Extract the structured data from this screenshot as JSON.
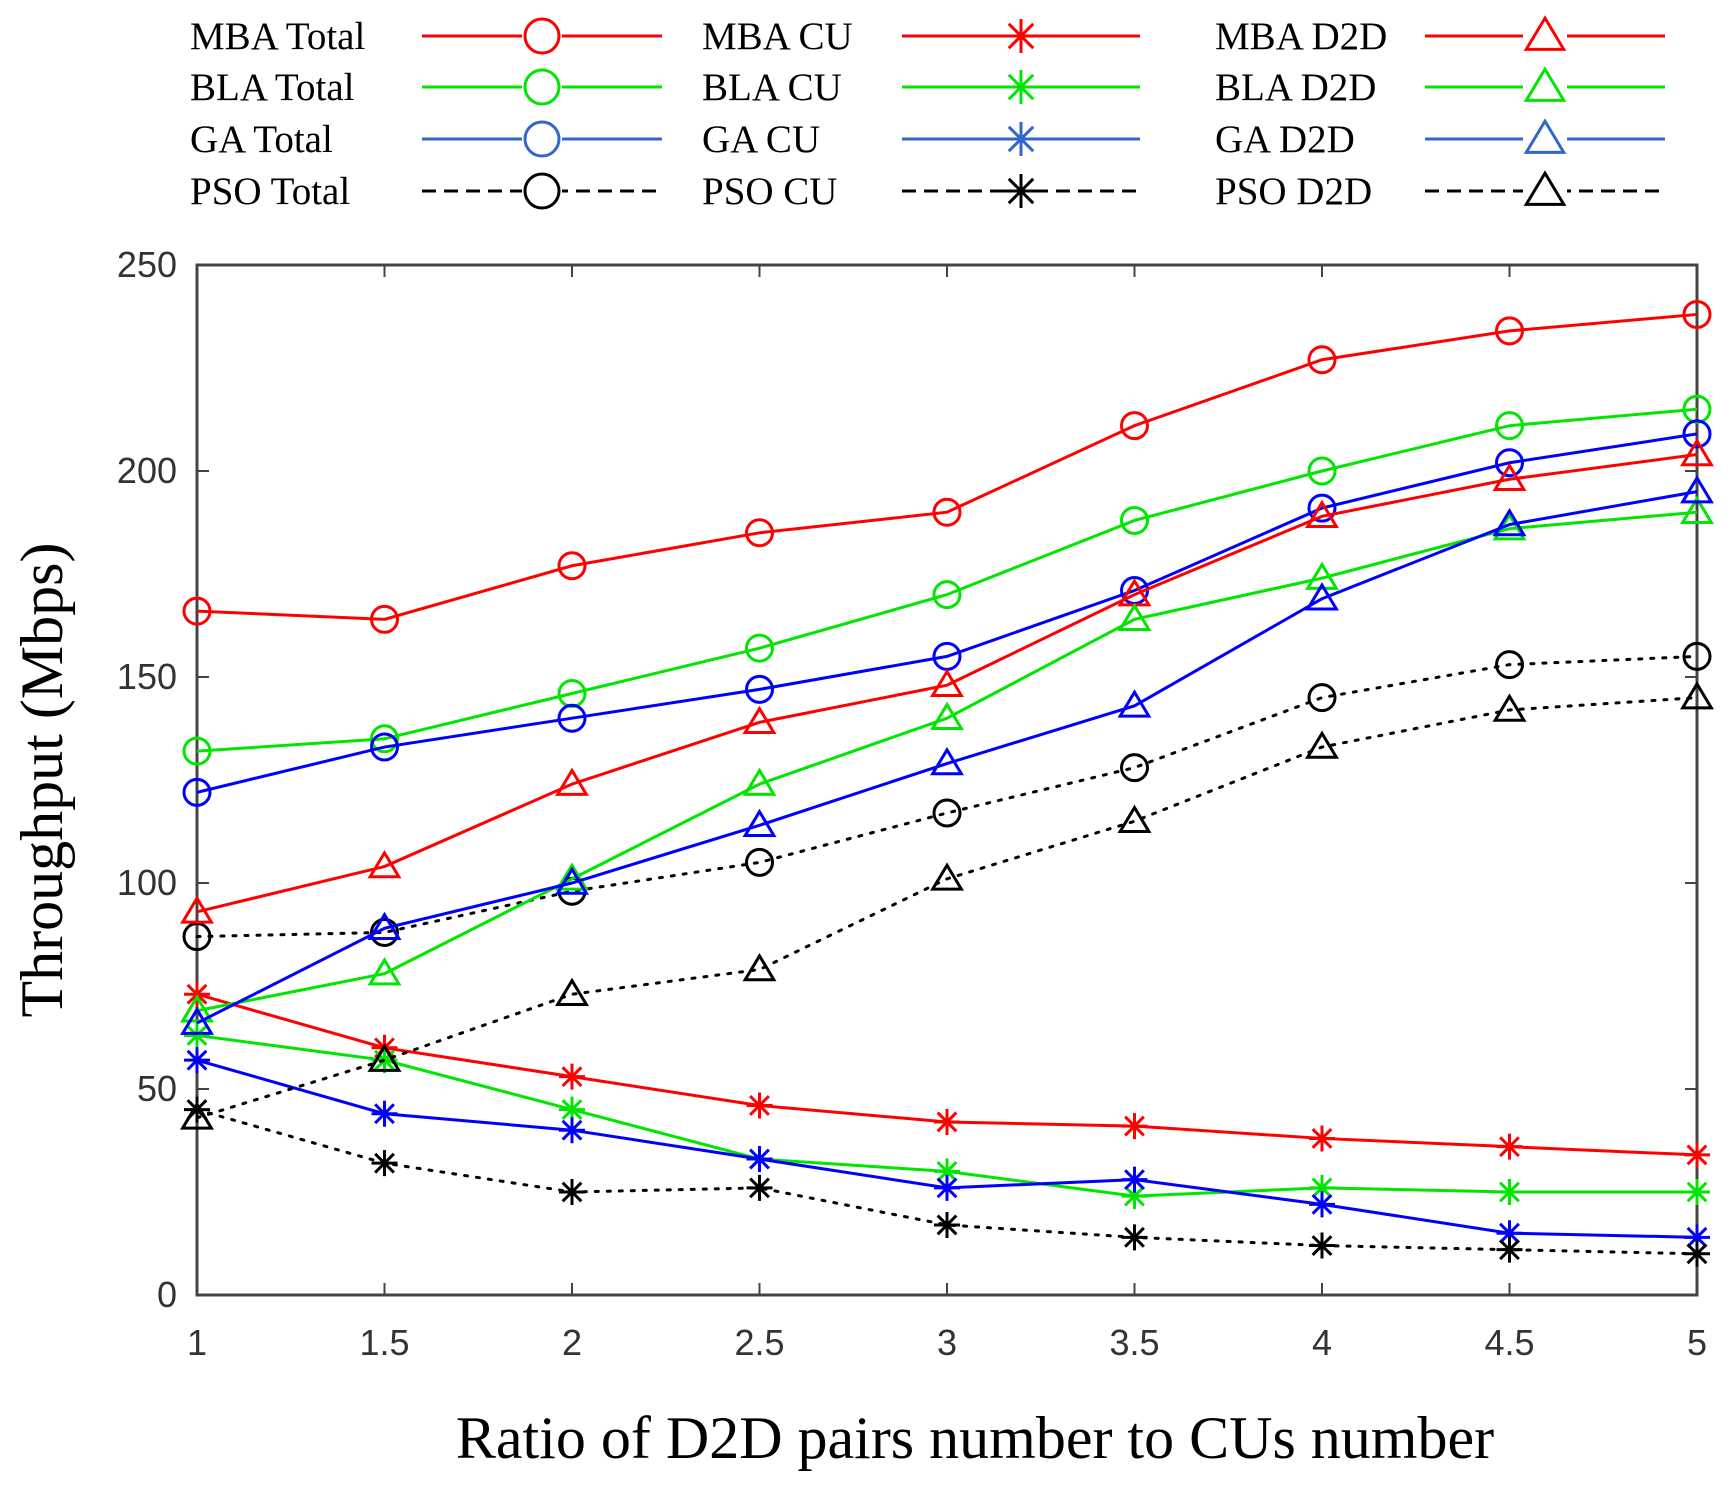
{
  "chart_data": {
    "type": "line",
    "title": "",
    "xlabel": "Ratio of D2D pairs number to CUs number",
    "ylabel": "Throughput (Mbps)",
    "x": [
      1,
      1.5,
      2,
      2.5,
      3,
      3.5,
      4,
      4.5,
      5
    ],
    "xticks": [
      "1",
      "1.5",
      "2",
      "2.5",
      "3",
      "3.5",
      "4",
      "4.5",
      "5"
    ],
    "yticks": [
      "0",
      "50",
      "100",
      "150",
      "200",
      "250"
    ],
    "xlim": [
      1,
      5
    ],
    "ylim": [
      0,
      250
    ],
    "grid": false,
    "legend_position": "top",
    "series": [
      {
        "name": "MBA Total",
        "color": "#ff0000",
        "marker": "circle",
        "dash": "solid",
        "values": [
          166,
          164,
          177,
          185,
          190,
          211,
          227,
          234,
          238
        ]
      },
      {
        "name": "BLA Total",
        "color": "#00e600",
        "marker": "circle",
        "dash": "solid",
        "values": [
          132,
          135,
          146,
          157,
          170,
          188,
          200,
          211,
          215
        ]
      },
      {
        "name": "GA Total",
        "color": "#0000ff",
        "marker": "circle",
        "dash": "solid",
        "values": [
          122,
          133,
          140,
          147,
          155,
          171,
          191,
          202,
          209
        ]
      },
      {
        "name": "PSO Total",
        "color": "#000000",
        "marker": "circle",
        "dash": "dotted",
        "values": [
          87,
          88,
          98,
          105,
          117,
          128,
          145,
          153,
          155
        ]
      },
      {
        "name": "MBA CU",
        "color": "#ff0000",
        "marker": "star",
        "dash": "solid",
        "values": [
          73,
          60,
          53,
          46,
          42,
          41,
          38,
          36,
          34
        ]
      },
      {
        "name": "BLA CU",
        "color": "#00e600",
        "marker": "star",
        "dash": "solid",
        "values": [
          63,
          57,
          45,
          33,
          30,
          24,
          26,
          25,
          25
        ]
      },
      {
        "name": "GA CU",
        "color": "#0000ff",
        "marker": "star",
        "dash": "solid",
        "values": [
          57,
          44,
          40,
          33,
          26,
          28,
          22,
          15,
          14
        ]
      },
      {
        "name": "PSO CU",
        "color": "#000000",
        "marker": "star",
        "dash": "dotted",
        "values": [
          45,
          32,
          25,
          26,
          17,
          14,
          12,
          11,
          10
        ]
      },
      {
        "name": "MBA D2D",
        "color": "#ff0000",
        "marker": "triangle",
        "dash": "solid",
        "values": [
          93,
          104,
          124,
          139,
          148,
          170,
          189,
          198,
          204
        ]
      },
      {
        "name": "BLA D2D",
        "color": "#00e600",
        "marker": "triangle",
        "dash": "solid",
        "values": [
          69,
          78,
          101,
          124,
          140,
          164,
          174,
          186,
          190
        ]
      },
      {
        "name": "GA D2D",
        "color": "#0000ff",
        "marker": "triangle",
        "dash": "solid",
        "values": [
          66,
          89,
          100,
          114,
          129,
          143,
          169,
          187,
          195
        ]
      },
      {
        "name": "PSO D2D",
        "color": "#000000",
        "marker": "triangle",
        "dash": "dotted",
        "values": [
          43,
          57,
          73,
          79,
          101,
          115,
          133,
          142,
          145
        ]
      }
    ],
    "legend": {
      "columns": [
        {
          "entries": [
            {
              "label": "MBA Total",
              "color": "#ff0000",
              "marker": "circle",
              "dash": "solid"
            },
            {
              "label": "BLA Total",
              "color": "#00e600",
              "marker": "circle",
              "dash": "solid"
            },
            {
              "label": "GA Total",
              "color": "#3366cc",
              "marker": "circle",
              "dash": "solid"
            },
            {
              "label": "PSO Total",
              "color": "#000000",
              "marker": "circle",
              "dash": "dashed"
            }
          ]
        },
        {
          "entries": [
            {
              "label": "MBA CU",
              "color": "#ff0000",
              "marker": "star",
              "dash": "solid"
            },
            {
              "label": "BLA CU",
              "color": "#00e600",
              "marker": "star",
              "dash": "solid"
            },
            {
              "label": "GA CU",
              "color": "#3366cc",
              "marker": "star",
              "dash": "solid"
            },
            {
              "label": "PSO CU",
              "color": "#000000",
              "marker": "star",
              "dash": "dashed"
            }
          ]
        },
        {
          "entries": [
            {
              "label": "MBA D2D",
              "color": "#ff0000",
              "marker": "triangle",
              "dash": "solid"
            },
            {
              "label": "BLA D2D",
              "color": "#00e600",
              "marker": "triangle",
              "dash": "solid"
            },
            {
              "label": "GA D2D",
              "color": "#3366cc",
              "marker": "triangle",
              "dash": "solid"
            },
            {
              "label": "PSO D2D",
              "color": "#000000",
              "marker": "triangle",
              "dash": "dashed"
            }
          ]
        }
      ]
    }
  }
}
